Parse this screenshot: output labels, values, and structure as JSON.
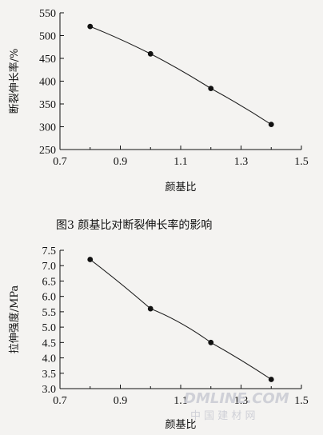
{
  "figure3": {
    "caption": "图3   颜基比对断裂伸长率的影响"
  },
  "chart_data": [
    {
      "type": "line",
      "title": "",
      "xlabel": "颜基比",
      "ylabel": "断裂伸长率/%",
      "xlim": [
        0.7,
        1.5
      ],
      "ylim": [
        250,
        550
      ],
      "xticks": [
        "0.7",
        "0.9",
        "1.1",
        "1.3",
        "1.5"
      ],
      "yticks": [
        "250",
        "300",
        "350",
        "400",
        "450",
        "500",
        "550"
      ],
      "x": [
        0.8,
        1.0,
        1.2,
        1.4
      ],
      "y": [
        520,
        460,
        384,
        305
      ],
      "grid": false,
      "marker": "circle"
    },
    {
      "type": "line",
      "title": "",
      "xlabel": "颜基比",
      "ylabel": "拉伸强度/MPa",
      "xlim": [
        0.7,
        1.5
      ],
      "ylim": [
        3.0,
        7.5
      ],
      "xticks": [
        "0.7",
        "0.9",
        "1.1",
        "1.3",
        "1.5"
      ],
      "yticks": [
        "3.0",
        "3.5",
        "4.0",
        "4.5",
        "5.0",
        "5.5",
        "6.0",
        "6.5",
        "7.0",
        "7.5"
      ],
      "x": [
        0.8,
        1.0,
        1.2,
        1.4
      ],
      "y": [
        7.2,
        5.6,
        4.5,
        3.3
      ],
      "grid": false,
      "marker": "circle"
    }
  ],
  "watermark": {
    "logo_text": "DMLINE.COM",
    "sub_text": "中 国 建 材 网"
  }
}
